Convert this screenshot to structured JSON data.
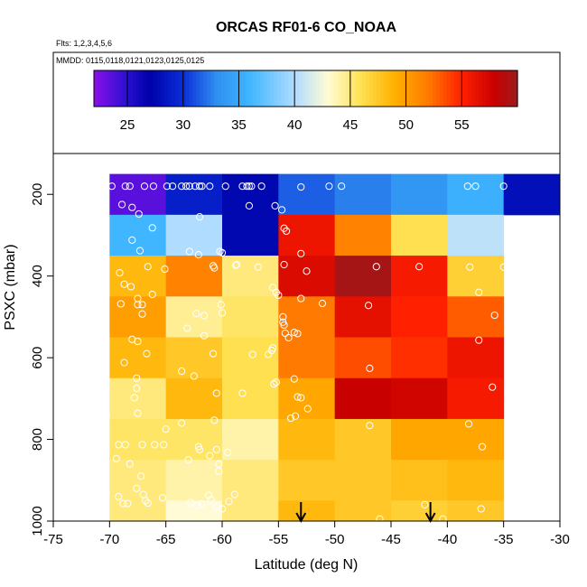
{
  "chart_data": {
    "type": "heatmap",
    "title": "ORCAS RF01-6 CO_NOAA",
    "flights_label": "Flts: 1,2,3,4,5,6",
    "dates_label": "MMDD: 0115,0118,0121,0123,0125,0125",
    "xlabel": "Latitude (deg N)",
    "ylabel": "PSXC (mbar)",
    "xlim": [
      -75,
      -30
    ],
    "ylim": [
      1000,
      100
    ],
    "xticks": [
      -75,
      -70,
      -65,
      -60,
      -55,
      -50,
      -45,
      -40,
      -35,
      -30
    ],
    "yticks": [
      200,
      400,
      600,
      800,
      1000
    ],
    "colorbar": {
      "min": 22,
      "max": 60,
      "ticks": [
        25,
        30,
        35,
        40,
        45,
        50,
        55
      ],
      "stops": [
        {
          "v": 22,
          "color": "#8b10e8"
        },
        {
          "v": 25,
          "color": "#2810d0"
        },
        {
          "v": 27,
          "color": "#0000a8"
        },
        {
          "v": 30,
          "color": "#0a2ed8"
        },
        {
          "v": 33,
          "color": "#2f8ff0"
        },
        {
          "v": 36,
          "color": "#3fb6ff"
        },
        {
          "v": 40,
          "color": "#b0dcff"
        },
        {
          "v": 43,
          "color": "#fffbd6"
        },
        {
          "v": 46,
          "color": "#ffe050"
        },
        {
          "v": 49,
          "color": "#ffb000"
        },
        {
          "v": 52,
          "color": "#ff7a00"
        },
        {
          "v": 55,
          "color": "#ff2000"
        },
        {
          "v": 58,
          "color": "#c80000"
        },
        {
          "v": 60,
          "color": "#9b1c1c"
        }
      ]
    },
    "lat_bins": [
      -70,
      -65,
      -60,
      -55,
      -50,
      -45,
      -40,
      -35,
      -30
    ],
    "pres_bins": [
      150,
      250,
      350,
      450,
      550,
      650,
      750,
      850,
      950,
      1000
    ],
    "cells": [
      [
        23.5,
        29.0,
        27.5,
        31.5,
        32.5,
        33.5,
        35.5,
        28.0
      ],
      [
        36.0,
        40.0,
        27.5,
        56.0,
        51.5,
        46.0,
        40.5,
        null
      ],
      [
        48.5,
        51.5,
        45.0,
        57.0,
        59.5,
        55.5,
        47.0,
        null
      ],
      [
        50.0,
        44.5,
        45.5,
        52.0,
        56.5,
        55.0,
        53.0,
        null
      ],
      [
        48.5,
        47.5,
        46.0,
        52.0,
        53.5,
        54.5,
        56.0,
        null
      ],
      [
        45.0,
        48.5,
        46.0,
        49.5,
        58.0,
        57.5,
        55.5,
        null
      ],
      [
        45.5,
        45.5,
        44.0,
        48.5,
        47.5,
        49.5,
        49.5,
        null
      ],
      [
        45.0,
        44.0,
        45.0,
        47.5,
        47.5,
        48.0,
        48.5,
        null
      ],
      [
        45.0,
        43.0,
        45.0,
        48.5,
        47.5,
        47.0,
        47.5,
        null
      ]
    ],
    "observations": [
      [
        -69.8,
        180
      ],
      [
        -68.6,
        180
      ],
      [
        -68.2,
        180
      ],
      [
        -66.9,
        180
      ],
      [
        -66.1,
        180
      ],
      [
        -64.9,
        180
      ],
      [
        -64.4,
        180
      ],
      [
        -63.6,
        180
      ],
      [
        -63.2,
        180
      ],
      [
        -62.9,
        180
      ],
      [
        -62.4,
        180
      ],
      [
        -62.0,
        180
      ],
      [
        -61.8,
        180
      ],
      [
        -61.1,
        180
      ],
      [
        -59.7,
        180
      ],
      [
        -58.2,
        180
      ],
      [
        -57.8,
        180
      ],
      [
        -57.6,
        180
      ],
      [
        -57.4,
        180
      ],
      [
        -56.5,
        180
      ],
      [
        -53.0,
        182
      ],
      [
        -50.5,
        180
      ],
      [
        -49.4,
        180
      ],
      [
        -38.2,
        180
      ],
      [
        -37.5,
        180
      ],
      [
        -35.0,
        180
      ],
      [
        -68.9,
        225
      ],
      [
        -68.0,
        232
      ],
      [
        -67.4,
        248
      ],
      [
        -66.2,
        282
      ],
      [
        -62.0,
        255
      ],
      [
        -57.6,
        228
      ],
      [
        -55.3,
        228
      ],
      [
        -54.7,
        238
      ],
      [
        -54.5,
        283
      ],
      [
        -54.3,
        290
      ],
      [
        -68.0,
        312
      ],
      [
        -67.3,
        338
      ],
      [
        -66.6,
        377
      ],
      [
        -65.1,
        383
      ],
      [
        -69.1,
        392
      ],
      [
        -62.9,
        340
      ],
      [
        -62.1,
        348
      ],
      [
        -60.8,
        375
      ],
      [
        -60.7,
        380
      ],
      [
        -60.2,
        340
      ],
      [
        -60.0,
        343
      ],
      [
        -58.8,
        374
      ],
      [
        -58.7,
        372
      ],
      [
        -56.8,
        378
      ],
      [
        -54.5,
        372
      ],
      [
        -53.0,
        345
      ],
      [
        -52.5,
        388
      ],
      [
        -46.3,
        377
      ],
      [
        -42.5,
        377
      ],
      [
        -38.0,
        378
      ],
      [
        -35.0,
        378
      ],
      [
        -68.7,
        420
      ],
      [
        -68.1,
        426
      ],
      [
        -67.5,
        455
      ],
      [
        -67.5,
        470
      ],
      [
        -69.0,
        468
      ],
      [
        -67.1,
        470
      ],
      [
        -67.1,
        493
      ],
      [
        -66.2,
        445
      ],
      [
        -62.3,
        492
      ],
      [
        -61.6,
        497
      ],
      [
        -60.0,
        490
      ],
      [
        -60.1,
        470
      ],
      [
        -55.5,
        428
      ],
      [
        -55.2,
        440
      ],
      [
        -55.0,
        447
      ],
      [
        -53.0,
        455
      ],
      [
        -51.1,
        467
      ],
      [
        -54.6,
        500
      ],
      [
        -54.6,
        513
      ],
      [
        -47.0,
        472
      ],
      [
        -37.2,
        440
      ],
      [
        -35.8,
        496
      ],
      [
        -68.0,
        555
      ],
      [
        -67.5,
        560
      ],
      [
        -66.7,
        590
      ],
      [
        -68.7,
        612
      ],
      [
        -63.1,
        528
      ],
      [
        -61.6,
        546
      ],
      [
        -60.8,
        590
      ],
      [
        -57.3,
        592
      ],
      [
        -55.9,
        592
      ],
      [
        -55.6,
        582
      ],
      [
        -55.5,
        576
      ],
      [
        -54.5,
        520
      ],
      [
        -54.4,
        540
      ],
      [
        -54.1,
        551
      ],
      [
        -53.3,
        541
      ],
      [
        -53.6,
        538
      ],
      [
        -37.2,
        557
      ],
      [
        -67.6,
        650
      ],
      [
        -67.6,
        675
      ],
      [
        -67.8,
        698
      ],
      [
        -63.6,
        633
      ],
      [
        -62.5,
        645
      ],
      [
        -60.5,
        687
      ],
      [
        -58.2,
        687
      ],
      [
        -55.4,
        664
      ],
      [
        -55.2,
        660
      ],
      [
        -53.6,
        652
      ],
      [
        -53.3,
        696
      ],
      [
        -53.0,
        698
      ],
      [
        -46.9,
        626
      ],
      [
        -36.0,
        672
      ],
      [
        -70.3,
        740
      ],
      [
        -67.5,
        736
      ],
      [
        -65.0,
        775
      ],
      [
        -63.6,
        760
      ],
      [
        -60.7,
        753
      ],
      [
        -53.9,
        748
      ],
      [
        -53.5,
        743
      ],
      [
        -52.4,
        725
      ],
      [
        -46.9,
        766
      ],
      [
        -38.1,
        762
      ],
      [
        -69.2,
        813
      ],
      [
        -68.6,
        813
      ],
      [
        -67.1,
        813
      ],
      [
        -66.0,
        813
      ],
      [
        -65.2,
        813
      ],
      [
        -69.4,
        847
      ],
      [
        -68.2,
        860
      ],
      [
        -67.2,
        890
      ],
      [
        -63.0,
        850
      ],
      [
        -62.1,
        818
      ],
      [
        -62.0,
        825
      ],
      [
        -61.1,
        840
      ],
      [
        -60.3,
        860
      ],
      [
        -60.3,
        878
      ],
      [
        -59.5,
        832
      ],
      [
        -60.5,
        825
      ],
      [
        -36.9,
        818
      ],
      [
        -69.2,
        940
      ],
      [
        -68.8,
        957
      ],
      [
        -68.4,
        957
      ],
      [
        -67.6,
        920
      ],
      [
        -67.0,
        935
      ],
      [
        -66.8,
        950
      ],
      [
        -66.6,
        956
      ],
      [
        -65.3,
        943
      ],
      [
        -62.8,
        955
      ],
      [
        -62.2,
        962
      ],
      [
        -61.8,
        958
      ],
      [
        -61.2,
        937
      ],
      [
        -61.0,
        948
      ],
      [
        -60.5,
        965
      ],
      [
        -60.0,
        970
      ],
      [
        -59.4,
        952
      ],
      [
        -58.9,
        935
      ],
      [
        -46.0,
        995
      ],
      [
        -42.0,
        960
      ],
      [
        -40.4,
        995
      ],
      [
        -37.0,
        970
      ]
    ],
    "arrows": [
      -53.0,
      -41.5
    ]
  }
}
